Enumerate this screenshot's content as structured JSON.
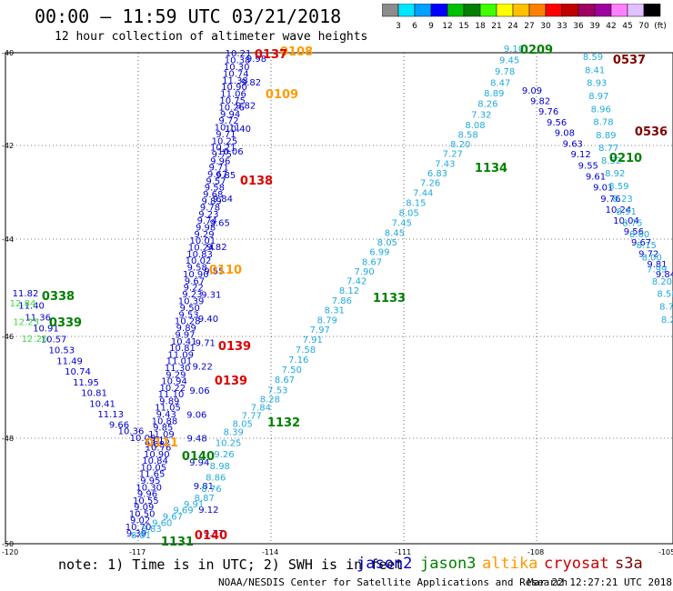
{
  "header": {
    "title": "00:00 – 11:59 UTC 03/21/2018",
    "subtitle": "12 hour collection of altimeter wave heights"
  },
  "colorbar": {
    "colors": [
      "#8c8c8c",
      "#00e5ff",
      "#00a0ff",
      "#0000ff",
      "#00c000",
      "#008000",
      "#40ff00",
      "#ffff00",
      "#ffc000",
      "#ff8000",
      "#ff0000",
      "#c00000",
      "#a00060",
      "#a000a0",
      "#ff80ff",
      "#e0c0ff",
      "#000000"
    ],
    "labels": [
      "3",
      "6",
      "9",
      "12",
      "15",
      "18",
      "21",
      "24",
      "27",
      "30",
      "33",
      "36",
      "39",
      "42",
      "45",
      "70",
      "(ft)"
    ]
  },
  "axes": {
    "lat_labels": [
      "-40",
      "-42",
      "-44",
      "-46",
      "-48",
      "-50"
    ],
    "lon_labels": [
      "-120",
      "-117",
      "-114",
      "-111",
      "-108",
      "-105"
    ]
  },
  "footer": {
    "note": "note: 1) Time is in UTC; 2) SWH is in feet",
    "credit": "NOAA/NESDIS Center for Satellite Applications and Research",
    "stamp": "Mar 22 12:27:21 UTC 2018"
  },
  "legend": [
    {
      "label": "jason2",
      "color": "#0000cc"
    },
    {
      "label": "jason3",
      "color": "#008000"
    },
    {
      "label": "altika",
      "color": "#ff9900"
    },
    {
      "label": "cryosat",
      "color": "#cc0000"
    },
    {
      "label": "s3a",
      "color": "#800000"
    }
  ],
  "time_labels": [
    {
      "text": "0108",
      "color": "#ff9900"
    },
    {
      "text": "0137",
      "color": "#dd0000"
    },
    {
      "text": "0109",
      "color": "#ff9900"
    },
    {
      "text": "0138",
      "color": "#dd0000"
    },
    {
      "text": "0110",
      "color": "#ff9900"
    },
    {
      "text": "0139",
      "color": "#dd0000"
    },
    {
      "text": "0139",
      "color": "#dd0000"
    },
    {
      "text": "0111",
      "color": "#ff9900"
    },
    {
      "text": "0140",
      "color": "#008000"
    },
    {
      "text": "0140",
      "color": "#dd0000"
    },
    {
      "text": "1131",
      "color": "#008000"
    },
    {
      "text": "0338",
      "color": "#008000"
    },
    {
      "text": "0339",
      "color": "#008000"
    },
    {
      "text": "1132",
      "color": "#008000"
    },
    {
      "text": "1133",
      "color": "#008000"
    },
    {
      "text": "1134",
      "color": "#008000"
    },
    {
      "text": "0209",
      "color": "#008000"
    },
    {
      "text": "0210",
      "color": "#008000"
    },
    {
      "text": "0537",
      "color": "#800000"
    },
    {
      "text": "0536",
      "color": "#800000"
    }
  ],
  "tracks": [
    {
      "name": "track-jason2-west",
      "color": "#0000cc",
      "values": [
        "10.21",
        "10.38",
        "10.30",
        "10.74",
        "11.38",
        "10.90",
        "11.06",
        "10.75",
        "10.26",
        "9.94",
        "9.72",
        "10.11",
        "9.71",
        "10.25",
        "10.21",
        "9.75",
        "9.96",
        "9.71",
        "9.67",
        "9.57",
        "9.58",
        "9.68",
        "9.89",
        "9.78",
        "9.23",
        "9.74",
        "9.98",
        "9.29",
        "10.01",
        "10.24",
        "10.83",
        "10.02",
        "9.58",
        "10.90",
        "9.67",
        "9.22",
        "9.23",
        "10.39",
        "9.50",
        "9.53",
        "10.28",
        "9.89",
        "9.97",
        "10.41",
        "10.81",
        "11.09",
        "11.01",
        "11.30",
        "9.29",
        "10.94",
        "10.22",
        "11.10",
        "9.89",
        "11.05",
        "9.43",
        "10.88",
        "9.85",
        "11.09",
        "9.15",
        "10.76",
        "10.90",
        "10.84",
        "10.05",
        "11.65",
        "9.95",
        "10.30",
        "9.96",
        "10.55",
        "9.09",
        "10.50",
        "9.02",
        "10.70",
        "9.39"
      ]
    },
    {
      "name": "track-jason2-mid",
      "color": "#0000cc",
      "values": [
        "9.98",
        "9.82",
        "9.82",
        "10.40",
        "10.06",
        "9.85",
        "9.84",
        "9.65",
        "9.82",
        "9.55",
        "9.31",
        "9.40",
        "9.71",
        "9.22",
        "9.06",
        "9.06",
        "9.48",
        "9.94",
        "9.81",
        "9.12",
        "9.37"
      ]
    },
    {
      "name": "track-jason2-left",
      "color": "#0000cc",
      "values": [
        "11.82",
        "11.40",
        "11.36",
        "10.91",
        "10.57",
        "10.53",
        "11.49",
        "10.74",
        "11.95",
        "10.81",
        "10.41",
        "11.13",
        "9.66",
        "10.36",
        "10.09",
        "9.68"
      ]
    },
    {
      "name": "track-jason3-left",
      "color": "#40d840",
      "values": [
        "12.84",
        "12.25",
        "12.26"
      ]
    },
    {
      "name": "track-s3a-ascending",
      "color": "#20aadd",
      "values": [
        "8.81",
        "8.83",
        "9.60",
        "9.67",
        "9.69",
        "9.91",
        "8.87",
        "8.76",
        "8.86",
        "8.98",
        "9.26",
        "10.25",
        "8.39",
        "8.05",
        "7.77",
        "7.84",
        "8.28",
        "7.53",
        "8.67",
        "7.50",
        "7.16",
        "7.58",
        "7.91",
        "7.97",
        "8.79",
        "8.31",
        "7.86",
        "8.12",
        "7.42",
        "7.90",
        "8.67",
        "6.99",
        "8.05",
        "8.45",
        "7.45",
        "8.05",
        "8.15",
        "7.44",
        "7.26",
        "6.83",
        "7.43",
        "7.27",
        "8.20",
        "8.58",
        "8.08",
        "7.32",
        "8.26",
        "8.89",
        "8.47",
        "9.78",
        "9.45",
        "9.10"
      ]
    },
    {
      "name": "track-jason2-east",
      "color": "#0000cc",
      "values": [
        "9.09",
        "9.82",
        "9.76",
        "9.56",
        "9.08",
        "9.63",
        "9.12",
        "9.55",
        "9.61",
        "9.01",
        "9.76",
        "10.24",
        "10.04",
        "9.56",
        "9.67",
        "9.72",
        "9.81",
        "9.84"
      ]
    },
    {
      "name": "track-s3a-east",
      "color": "#20aadd",
      "values": [
        "8.59",
        "8.41",
        "8.93",
        "8.97",
        "8.96",
        "8.78",
        "8.89",
        "8.77",
        "8.52",
        "8.92",
        "8.59",
        "8.23",
        "8.91",
        "8.75",
        "8.60",
        "8.15",
        "8.00",
        "7.99",
        "8.20",
        "8.58",
        "8.75",
        "8.22"
      ]
    }
  ]
}
